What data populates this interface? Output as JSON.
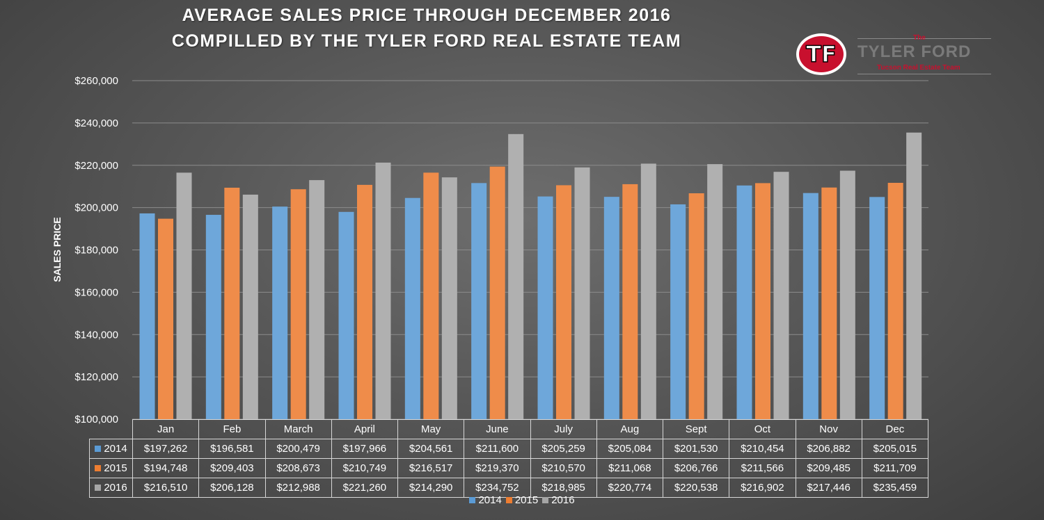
{
  "chart_data": {
    "type": "bar",
    "title": "AVERAGE SALES PRICE THROUGH DECEMBER 2016",
    "subtitle": "COMPILLED BY THE TYLER FORD REAL ESTATE TEAM",
    "xlabel": "",
    "ylabel": "SALES PRICE",
    "ylim": [
      100000,
      260000
    ],
    "yticks": [
      100000,
      120000,
      140000,
      160000,
      180000,
      200000,
      220000,
      240000,
      260000
    ],
    "ytick_labels": [
      "$100,000",
      "$120,000",
      "$140,000",
      "$160,000",
      "$180,000",
      "$200,000",
      "$220,000",
      "$240,000",
      "$260,000"
    ],
    "grid": true,
    "legend_position": "bottom",
    "categories": [
      "Jan",
      "Feb",
      "March",
      "April",
      "May",
      "June",
      "July",
      "Aug",
      "Sept",
      "Oct",
      "Nov",
      "Dec"
    ],
    "series": [
      {
        "name": "2014",
        "color": "#5b9bd5",
        "values": [
          197262,
          196581,
          200479,
          197966,
          204561,
          211600,
          205259,
          205084,
          201530,
          210454,
          206882,
          205015
        ],
        "labels": [
          "$197,262",
          "$196,581",
          "$200,479",
          "$197,966",
          "$204,561",
          "$211,600",
          "$205,259",
          "$205,084",
          "$201,530",
          "$210,454",
          "$206,882",
          "$205,015"
        ]
      },
      {
        "name": "2015",
        "color": "#ed7d31",
        "values": [
          194748,
          209403,
          208673,
          210749,
          216517,
          219370,
          210570,
          211068,
          206766,
          211566,
          209485,
          211709
        ],
        "labels": [
          "$194,748",
          "$209,403",
          "$208,673",
          "$210,749",
          "$216,517",
          "$219,370",
          "$210,570",
          "$211,068",
          "$206,766",
          "$211,566",
          "$209,485",
          "$211,709"
        ]
      },
      {
        "name": "2016",
        "color": "#a5a5a5",
        "values": [
          216510,
          206128,
          212988,
          221260,
          214290,
          234752,
          218985,
          220774,
          220538,
          216902,
          217446,
          235459
        ],
        "labels": [
          "$216,510",
          "$206,128",
          "$212,988",
          "$221,260",
          "$214,290",
          "$234,752",
          "$218,985",
          "$220,774",
          "$220,538",
          "$216,902",
          "$217,446",
          "$235,459"
        ]
      }
    ]
  },
  "logo": {
    "monogram": "TF",
    "the": "The",
    "name": "TYLER FORD",
    "subtitle": "Tucson Real Estate Team",
    "brand_red": "#c8102e"
  }
}
